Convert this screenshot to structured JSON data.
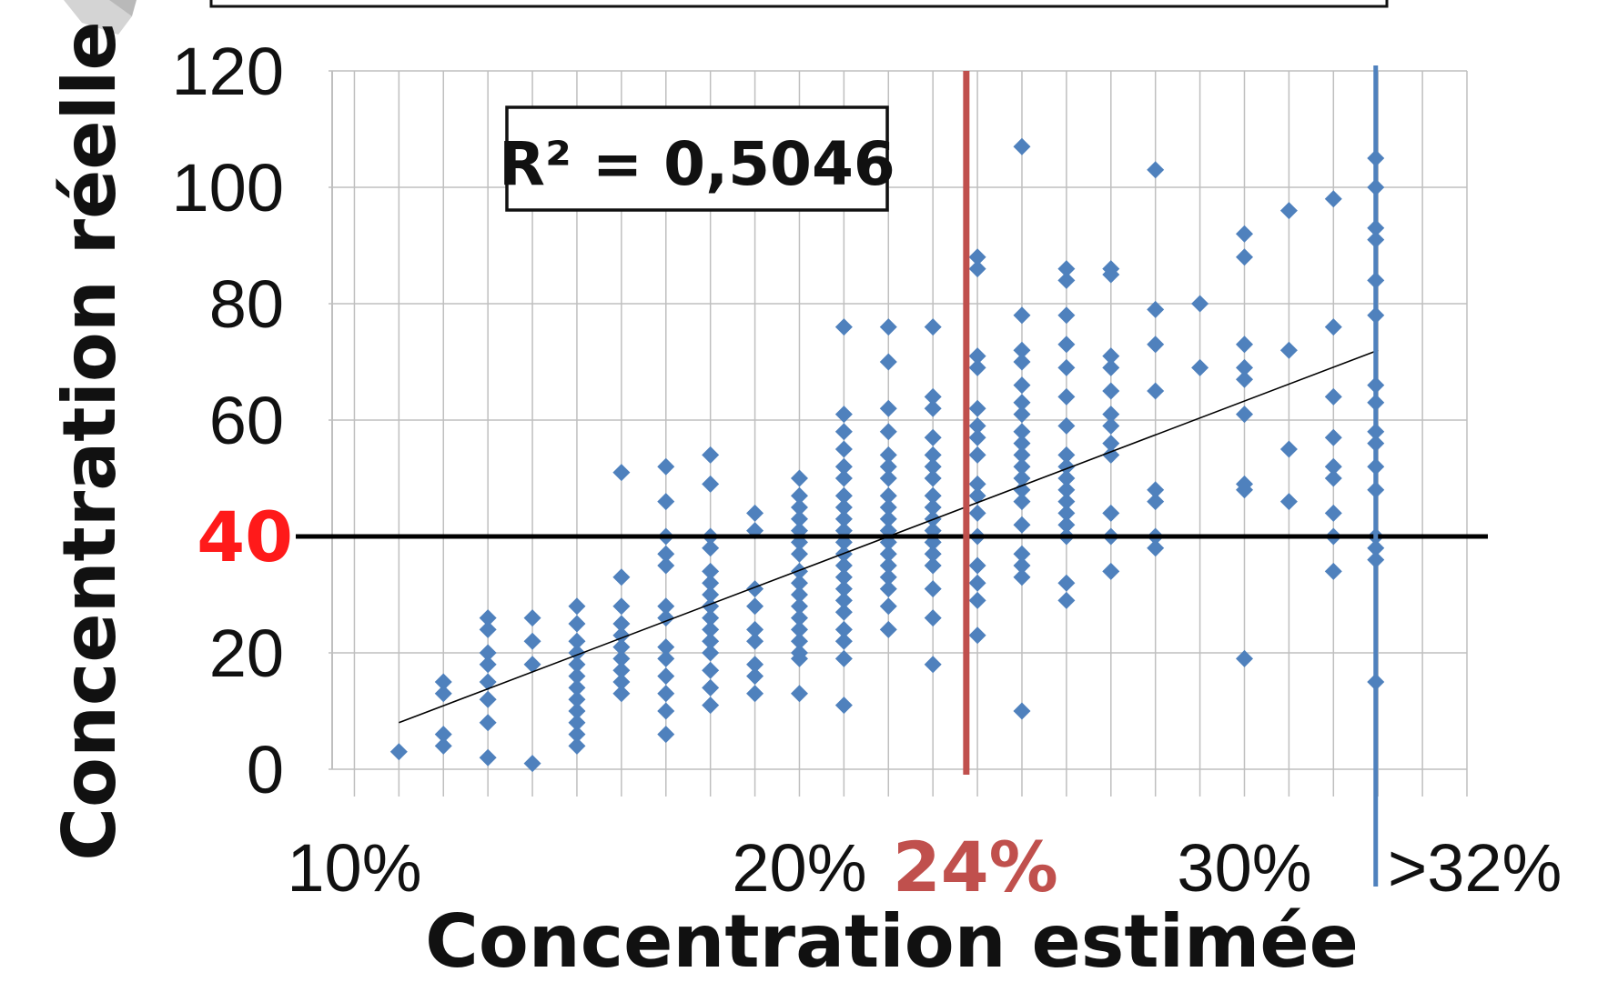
{
  "chart_data": {
    "type": "scatter",
    "xlabel": "Concentration estimée",
    "ylabel": "Concentration réelle",
    "xlim": [
      0.095,
      0.35
    ],
    "ylim": [
      0,
      120
    ],
    "x_ticks": [
      "10%",
      "20%",
      "30%"
    ],
    "x_tick_values": [
      0.1,
      0.2,
      0.3
    ],
    "y_ticks": [
      "0",
      "20",
      "60",
      "80",
      "100",
      "120"
    ],
    "y_tick_values": [
      0,
      20,
      60,
      80,
      100,
      120
    ],
    "grid": true,
    "annotation": "R² = 0,5046",
    "threshold_y": {
      "label": "40",
      "value": 40,
      "color": "#ff1a1a",
      "line_color": "#000000"
    },
    "threshold_x": {
      "label": "24%",
      "value": 0.2375,
      "color": "#c0504d"
    },
    "cap_x": {
      "label": ">32%",
      "value": 0.3295,
      "color": "#4f81bd"
    },
    "trendline": {
      "x": [
        0.11,
        0.33
      ],
      "y": [
        8,
        72
      ],
      "color": "#000000"
    },
    "marker_color": "#4f81bd",
    "points": [
      [
        0.11,
        3
      ],
      [
        0.12,
        4
      ],
      [
        0.12,
        6
      ],
      [
        0.12,
        13
      ],
      [
        0.12,
        15
      ],
      [
        0.13,
        2
      ],
      [
        0.13,
        8
      ],
      [
        0.13,
        12
      ],
      [
        0.13,
        15
      ],
      [
        0.13,
        18
      ],
      [
        0.13,
        20
      ],
      [
        0.13,
        24
      ],
      [
        0.13,
        26
      ],
      [
        0.14,
        1
      ],
      [
        0.14,
        18
      ],
      [
        0.14,
        22
      ],
      [
        0.14,
        26
      ],
      [
        0.15,
        4
      ],
      [
        0.15,
        6
      ],
      [
        0.15,
        8
      ],
      [
        0.15,
        10
      ],
      [
        0.15,
        12
      ],
      [
        0.15,
        14
      ],
      [
        0.15,
        16
      ],
      [
        0.15,
        18
      ],
      [
        0.15,
        20
      ],
      [
        0.15,
        22
      ],
      [
        0.15,
        25
      ],
      [
        0.15,
        28
      ],
      [
        0.16,
        13
      ],
      [
        0.16,
        15
      ],
      [
        0.16,
        17
      ],
      [
        0.16,
        19
      ],
      [
        0.16,
        21
      ],
      [
        0.16,
        23
      ],
      [
        0.16,
        25
      ],
      [
        0.16,
        28
      ],
      [
        0.16,
        33
      ],
      [
        0.16,
        51
      ],
      [
        0.17,
        6
      ],
      [
        0.17,
        10
      ],
      [
        0.17,
        13
      ],
      [
        0.17,
        16
      ],
      [
        0.17,
        19
      ],
      [
        0.17,
        21
      ],
      [
        0.17,
        26
      ],
      [
        0.17,
        28
      ],
      [
        0.17,
        35
      ],
      [
        0.17,
        37
      ],
      [
        0.17,
        40
      ],
      [
        0.17,
        46
      ],
      [
        0.17,
        52
      ],
      [
        0.18,
        11
      ],
      [
        0.18,
        14
      ],
      [
        0.18,
        17
      ],
      [
        0.18,
        20
      ],
      [
        0.18,
        22
      ],
      [
        0.18,
        24
      ],
      [
        0.18,
        26
      ],
      [
        0.18,
        28
      ],
      [
        0.18,
        30
      ],
      [
        0.18,
        32
      ],
      [
        0.18,
        34
      ],
      [
        0.18,
        38
      ],
      [
        0.18,
        40
      ],
      [
        0.18,
        49
      ],
      [
        0.18,
        54
      ],
      [
        0.19,
        13
      ],
      [
        0.19,
        16
      ],
      [
        0.19,
        18
      ],
      [
        0.19,
        22
      ],
      [
        0.19,
        24
      ],
      [
        0.19,
        28
      ],
      [
        0.19,
        31
      ],
      [
        0.19,
        41
      ],
      [
        0.19,
        44
      ],
      [
        0.2,
        13
      ],
      [
        0.2,
        19
      ],
      [
        0.2,
        20
      ],
      [
        0.2,
        22
      ],
      [
        0.2,
        24
      ],
      [
        0.2,
        26
      ],
      [
        0.2,
        28
      ],
      [
        0.2,
        30
      ],
      [
        0.2,
        32
      ],
      [
        0.2,
        34
      ],
      [
        0.2,
        37
      ],
      [
        0.2,
        39
      ],
      [
        0.2,
        41
      ],
      [
        0.2,
        43
      ],
      [
        0.2,
        45
      ],
      [
        0.2,
        47
      ],
      [
        0.2,
        50
      ],
      [
        0.21,
        11
      ],
      [
        0.21,
        19
      ],
      [
        0.21,
        22
      ],
      [
        0.21,
        24
      ],
      [
        0.21,
        27
      ],
      [
        0.21,
        29
      ],
      [
        0.21,
        31
      ],
      [
        0.21,
        33
      ],
      [
        0.21,
        35
      ],
      [
        0.21,
        37
      ],
      [
        0.21,
        39
      ],
      [
        0.21,
        41
      ],
      [
        0.21,
        43
      ],
      [
        0.21,
        45
      ],
      [
        0.21,
        47
      ],
      [
        0.21,
        50
      ],
      [
        0.21,
        52
      ],
      [
        0.21,
        55
      ],
      [
        0.21,
        58
      ],
      [
        0.21,
        61
      ],
      [
        0.21,
        76
      ],
      [
        0.22,
        24
      ],
      [
        0.22,
        28
      ],
      [
        0.22,
        31
      ],
      [
        0.22,
        33
      ],
      [
        0.22,
        35
      ],
      [
        0.22,
        37
      ],
      [
        0.22,
        39
      ],
      [
        0.22,
        41
      ],
      [
        0.22,
        43
      ],
      [
        0.22,
        45
      ],
      [
        0.22,
        47
      ],
      [
        0.22,
        50
      ],
      [
        0.22,
        52
      ],
      [
        0.22,
        54
      ],
      [
        0.22,
        58
      ],
      [
        0.22,
        62
      ],
      [
        0.22,
        70
      ],
      [
        0.22,
        76
      ],
      [
        0.23,
        18
      ],
      [
        0.23,
        26
      ],
      [
        0.23,
        31
      ],
      [
        0.23,
        35
      ],
      [
        0.23,
        37
      ],
      [
        0.23,
        39
      ],
      [
        0.23,
        41
      ],
      [
        0.23,
        43
      ],
      [
        0.23,
        45
      ],
      [
        0.23,
        47
      ],
      [
        0.23,
        50
      ],
      [
        0.23,
        52
      ],
      [
        0.23,
        54
      ],
      [
        0.23,
        57
      ],
      [
        0.23,
        62
      ],
      [
        0.23,
        64
      ],
      [
        0.23,
        76
      ],
      [
        0.24,
        23
      ],
      [
        0.24,
        29
      ],
      [
        0.24,
        32
      ],
      [
        0.24,
        35
      ],
      [
        0.24,
        40
      ],
      [
        0.24,
        44
      ],
      [
        0.24,
        47
      ],
      [
        0.24,
        49
      ],
      [
        0.24,
        54
      ],
      [
        0.24,
        57
      ],
      [
        0.24,
        59
      ],
      [
        0.24,
        62
      ],
      [
        0.24,
        69
      ],
      [
        0.24,
        71
      ],
      [
        0.24,
        86
      ],
      [
        0.24,
        88
      ],
      [
        0.25,
        10
      ],
      [
        0.25,
        33
      ],
      [
        0.25,
        35
      ],
      [
        0.25,
        37
      ],
      [
        0.25,
        42
      ],
      [
        0.25,
        46
      ],
      [
        0.25,
        48
      ],
      [
        0.25,
        50
      ],
      [
        0.25,
        52
      ],
      [
        0.25,
        54
      ],
      [
        0.25,
        56
      ],
      [
        0.25,
        58
      ],
      [
        0.25,
        61
      ],
      [
        0.25,
        63
      ],
      [
        0.25,
        66
      ],
      [
        0.25,
        70
      ],
      [
        0.25,
        72
      ],
      [
        0.25,
        78
      ],
      [
        0.25,
        107
      ],
      [
        0.26,
        29
      ],
      [
        0.26,
        32
      ],
      [
        0.26,
        40
      ],
      [
        0.26,
        42
      ],
      [
        0.26,
        44
      ],
      [
        0.26,
        46
      ],
      [
        0.26,
        48
      ],
      [
        0.26,
        50
      ],
      [
        0.26,
        52
      ],
      [
        0.26,
        54
      ],
      [
        0.26,
        59
      ],
      [
        0.26,
        64
      ],
      [
        0.26,
        69
      ],
      [
        0.26,
        73
      ],
      [
        0.26,
        78
      ],
      [
        0.26,
        84
      ],
      [
        0.26,
        86
      ],
      [
        0.27,
        34
      ],
      [
        0.27,
        40
      ],
      [
        0.27,
        44
      ],
      [
        0.27,
        54
      ],
      [
        0.27,
        56
      ],
      [
        0.27,
        59
      ],
      [
        0.27,
        61
      ],
      [
        0.27,
        65
      ],
      [
        0.27,
        69
      ],
      [
        0.27,
        71
      ],
      [
        0.27,
        85
      ],
      [
        0.27,
        86
      ],
      [
        0.28,
        38
      ],
      [
        0.28,
        40
      ],
      [
        0.28,
        46
      ],
      [
        0.28,
        48
      ],
      [
        0.28,
        65
      ],
      [
        0.28,
        73
      ],
      [
        0.28,
        79
      ],
      [
        0.28,
        103
      ],
      [
        0.29,
        69
      ],
      [
        0.29,
        80
      ],
      [
        0.3,
        19
      ],
      [
        0.3,
        48
      ],
      [
        0.3,
        49
      ],
      [
        0.3,
        61
      ],
      [
        0.3,
        67
      ],
      [
        0.3,
        69
      ],
      [
        0.3,
        73
      ],
      [
        0.3,
        88
      ],
      [
        0.3,
        92
      ],
      [
        0.31,
        46
      ],
      [
        0.31,
        55
      ],
      [
        0.31,
        72
      ],
      [
        0.31,
        96
      ],
      [
        0.32,
        34
      ],
      [
        0.32,
        40
      ],
      [
        0.32,
        44
      ],
      [
        0.32,
        50
      ],
      [
        0.32,
        52
      ],
      [
        0.32,
        57
      ],
      [
        0.32,
        64
      ],
      [
        0.32,
        76
      ],
      [
        0.32,
        98
      ],
      [
        0.3295,
        15
      ],
      [
        0.3295,
        36
      ],
      [
        0.3295,
        38
      ],
      [
        0.3295,
        40
      ],
      [
        0.3295,
        48
      ],
      [
        0.3295,
        52
      ],
      [
        0.3295,
        56
      ],
      [
        0.3295,
        58
      ],
      [
        0.3295,
        63
      ],
      [
        0.3295,
        66
      ],
      [
        0.3295,
        78
      ],
      [
        0.3295,
        84
      ],
      [
        0.3295,
        91
      ],
      [
        0.3295,
        93
      ],
      [
        0.3295,
        100
      ],
      [
        0.3295,
        105
      ]
    ]
  }
}
